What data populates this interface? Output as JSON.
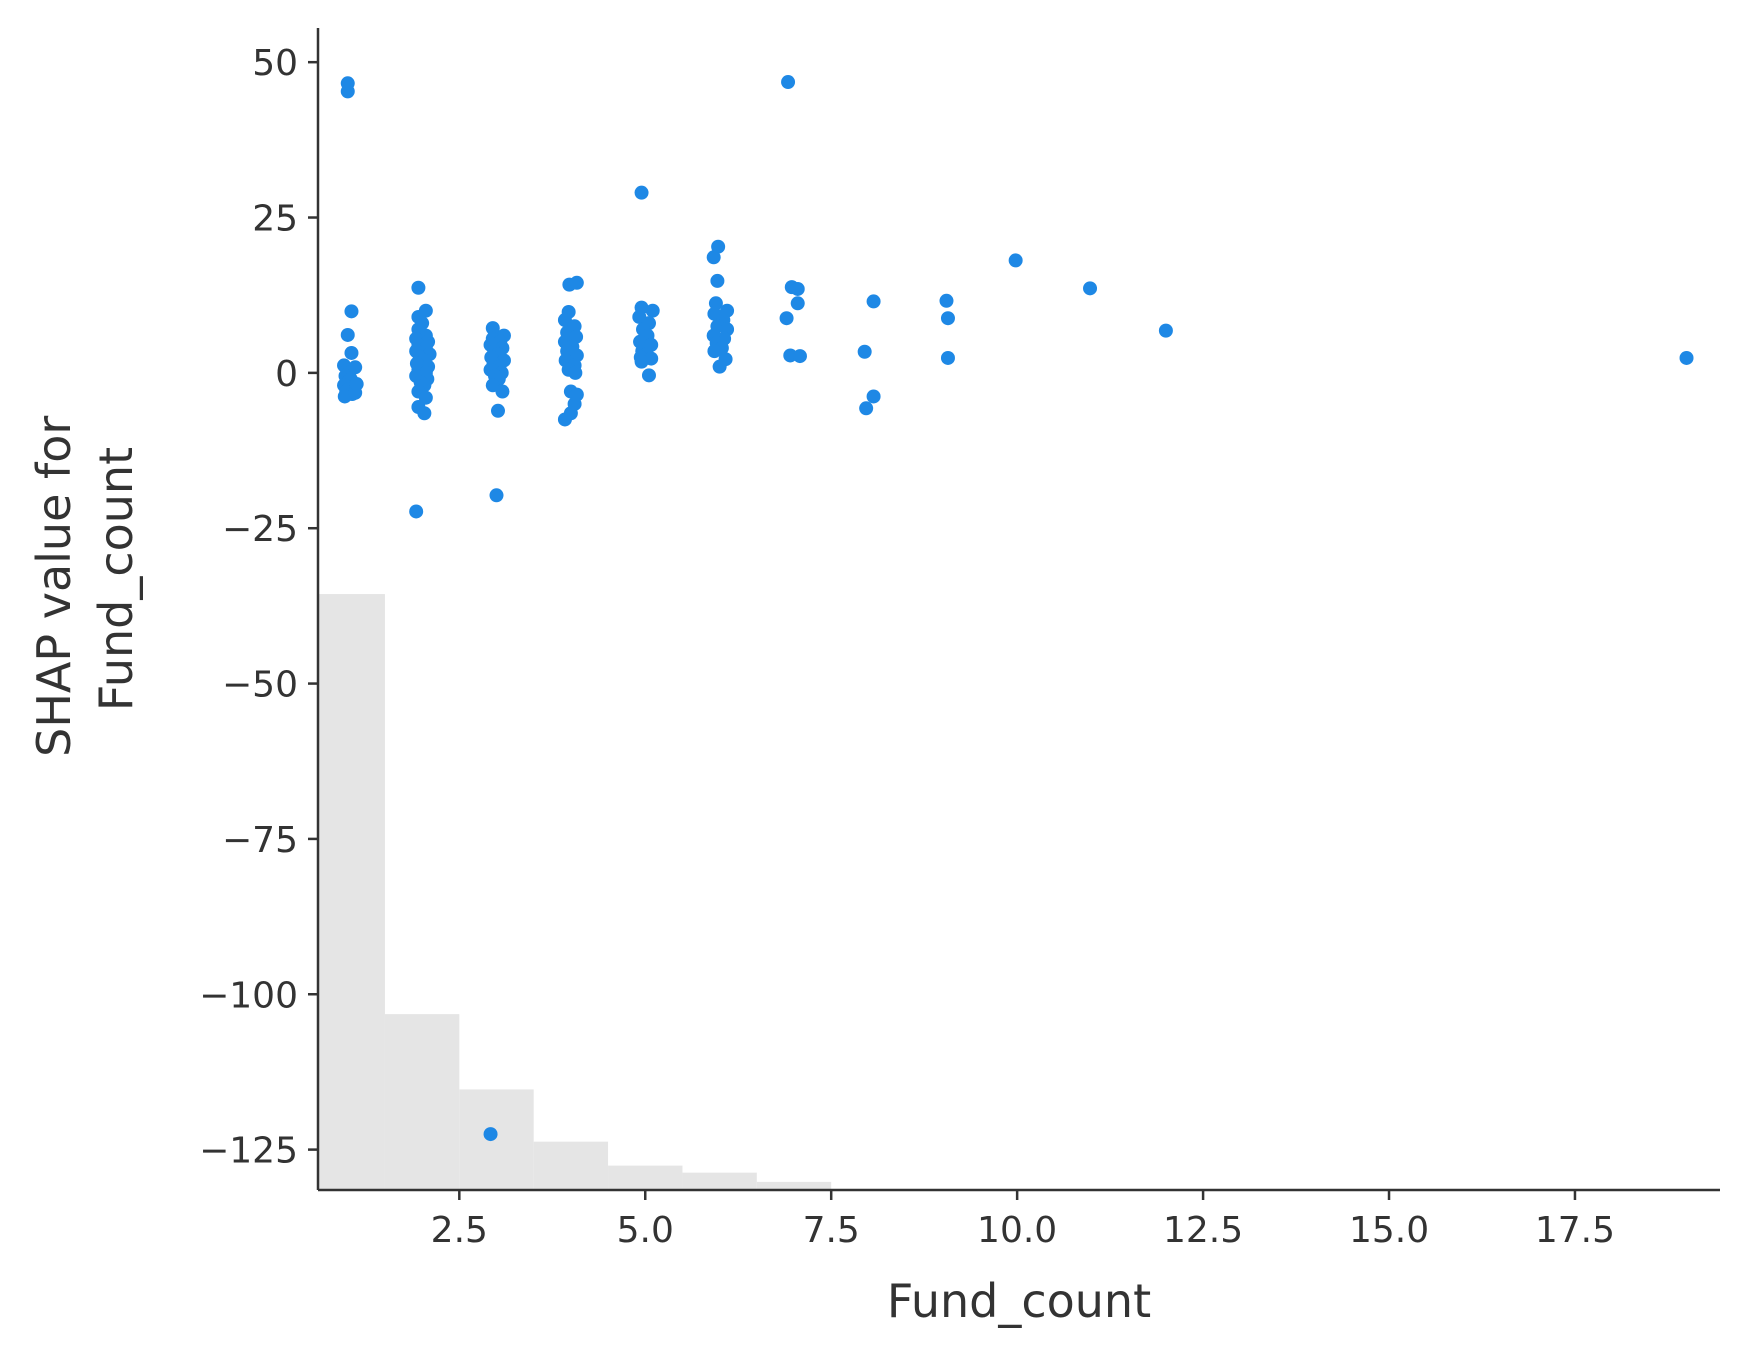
{
  "chart_data": {
    "type": "scatter",
    "title": "",
    "xlabel": "Fund_count",
    "ylabel_lines": [
      "SHAP value for",
      "Fund_count"
    ],
    "xlim": [
      0.6,
      19.45
    ],
    "ylim": [
      -131.5,
      55.5
    ],
    "xticks": [
      {
        "value": 2.5,
        "label": "2.5"
      },
      {
        "value": 5.0,
        "label": "5.0"
      },
      {
        "value": 7.5,
        "label": "7.5"
      },
      {
        "value": 10.0,
        "label": "10.0"
      },
      {
        "value": 12.5,
        "label": "12.5"
      },
      {
        "value": 15.0,
        "label": "15.0"
      },
      {
        "value": 17.5,
        "label": "17.5"
      }
    ],
    "yticks": [
      {
        "value": 50,
        "label": "50"
      },
      {
        "value": 25,
        "label": "25"
      },
      {
        "value": 0,
        "label": "0"
      },
      {
        "value": -25,
        "label": "−25"
      },
      {
        "value": -50,
        "label": "−50"
      },
      {
        "value": -75,
        "label": "−75"
      },
      {
        "value": -100,
        "label": "−100"
      },
      {
        "value": -125,
        "label": "−125"
      }
    ],
    "grid": false,
    "colors": {
      "points": "#1E88E5",
      "histogram": "#e5e5e5",
      "axis": "#333333"
    },
    "histogram": {
      "description": "background distribution of feature values (relative bar heights)",
      "bins": [
        {
          "x0": 0.5,
          "x1": 1.5,
          "height": 0.6696
        },
        {
          "x0": 1.5,
          "x1": 2.5,
          "height": 0.1976
        },
        {
          "x0": 2.5,
          "x1": 3.5,
          "height": 0.113
        },
        {
          "x0": 3.5,
          "x1": 4.5,
          "height": 0.0543
        },
        {
          "x0": 4.5,
          "x1": 5.5,
          "height": 0.0274
        },
        {
          "x0": 5.5,
          "x1": 6.5,
          "height": 0.0195
        },
        {
          "x0": 6.5,
          "x1": 7.5,
          "height": 0.0091
        }
      ]
    },
    "points": [
      {
        "x": 1.0,
        "y": 46.6
      },
      {
        "x": 1.0,
        "y": 45.3
      },
      {
        "x": 1.05,
        "y": 9.9
      },
      {
        "x": 1.0,
        "y": 6.1
      },
      {
        "x": 1.05,
        "y": 3.2
      },
      {
        "x": 0.95,
        "y": 1.2
      },
      {
        "x": 1.0,
        "y": 0.5
      },
      {
        "x": 1.02,
        "y": 0.0
      },
      {
        "x": 0.97,
        "y": -0.5
      },
      {
        "x": 1.04,
        "y": -1.0
      },
      {
        "x": 1.0,
        "y": -1.5
      },
      {
        "x": 0.95,
        "y": -2.0
      },
      {
        "x": 1.08,
        "y": -2.2
      },
      {
        "x": 1.02,
        "y": -2.6
      },
      {
        "x": 0.98,
        "y": -3.0
      },
      {
        "x": 1.06,
        "y": -3.4
      },
      {
        "x": 0.96,
        "y": -3.8
      },
      {
        "x": 1.1,
        "y": -3.2
      },
      {
        "x": 1.12,
        "y": -1.8
      },
      {
        "x": 1.1,
        "y": 0.9
      },
      {
        "x": 1.95,
        "y": 13.7
      },
      {
        "x": 2.05,
        "y": 10.0
      },
      {
        "x": 1.95,
        "y": 9.0
      },
      {
        "x": 2.0,
        "y": 8.0
      },
      {
        "x": 1.95,
        "y": 7.0
      },
      {
        "x": 2.05,
        "y": 6.0
      },
      {
        "x": 1.92,
        "y": 5.5
      },
      {
        "x": 2.08,
        "y": 5.0
      },
      {
        "x": 1.95,
        "y": 4.5
      },
      {
        "x": 2.05,
        "y": 4.0
      },
      {
        "x": 1.92,
        "y": 3.5
      },
      {
        "x": 2.1,
        "y": 3.0
      },
      {
        "x": 1.97,
        "y": 2.5
      },
      {
        "x": 2.02,
        "y": 2.0
      },
      {
        "x": 1.93,
        "y": 1.5
      },
      {
        "x": 2.08,
        "y": 1.0
      },
      {
        "x": 1.95,
        "y": 0.5
      },
      {
        "x": 2.05,
        "y": 0.0
      },
      {
        "x": 1.92,
        "y": -0.5
      },
      {
        "x": 2.07,
        "y": -1.0
      },
      {
        "x": 1.98,
        "y": -1.5
      },
      {
        "x": 2.03,
        "y": -2.0
      },
      {
        "x": 1.95,
        "y": -3.0
      },
      {
        "x": 2.05,
        "y": -4.0
      },
      {
        "x": 1.95,
        "y": -5.5
      },
      {
        "x": 2.03,
        "y": -6.5
      },
      {
        "x": 1.92,
        "y": -22.3
      },
      {
        "x": 2.95,
        "y": 7.2
      },
      {
        "x": 3.1,
        "y": 6.0
      },
      {
        "x": 2.95,
        "y": 5.5
      },
      {
        "x": 3.05,
        "y": 5.0
      },
      {
        "x": 2.92,
        "y": 4.5
      },
      {
        "x": 3.08,
        "y": 4.0
      },
      {
        "x": 2.97,
        "y": 3.5
      },
      {
        "x": 3.02,
        "y": 3.0
      },
      {
        "x": 2.93,
        "y": 2.5
      },
      {
        "x": 3.1,
        "y": 2.0
      },
      {
        "x": 2.96,
        "y": 1.5
      },
      {
        "x": 3.04,
        "y": 1.0
      },
      {
        "x": 2.92,
        "y": 0.5
      },
      {
        "x": 3.07,
        "y": 0.0
      },
      {
        "x": 2.98,
        "y": -0.5
      },
      {
        "x": 3.03,
        "y": -1.0
      },
      {
        "x": 2.95,
        "y": -2.0
      },
      {
        "x": 3.08,
        "y": -3.0
      },
      {
        "x": 3.02,
        "y": -6.1
      },
      {
        "x": 3.0,
        "y": -19.7
      },
      {
        "x": 2.92,
        "y": -122.5
      },
      {
        "x": 3.98,
        "y": 14.2
      },
      {
        "x": 4.08,
        "y": 14.5
      },
      {
        "x": 3.97,
        "y": 9.8
      },
      {
        "x": 3.92,
        "y": 8.5
      },
      {
        "x": 4.05,
        "y": 7.5
      },
      {
        "x": 3.95,
        "y": 6.5
      },
      {
        "x": 4.07,
        "y": 5.8
      },
      {
        "x": 3.92,
        "y": 5.0
      },
      {
        "x": 4.02,
        "y": 4.2
      },
      {
        "x": 3.95,
        "y": 3.5
      },
      {
        "x": 4.08,
        "y": 2.8
      },
      {
        "x": 3.93,
        "y": 2.0
      },
      {
        "x": 4.05,
        "y": 1.2
      },
      {
        "x": 3.97,
        "y": 0.5
      },
      {
        "x": 4.06,
        "y": 0.0
      },
      {
        "x": 4.0,
        "y": -3.0
      },
      {
        "x": 4.08,
        "y": -3.5
      },
      {
        "x": 4.05,
        "y": -5.0
      },
      {
        "x": 4.0,
        "y": -6.5
      },
      {
        "x": 3.92,
        "y": -7.5
      },
      {
        "x": 4.95,
        "y": 29.0
      },
      {
        "x": 4.95,
        "y": 10.5
      },
      {
        "x": 5.1,
        "y": 10.0
      },
      {
        "x": 4.92,
        "y": 9.0
      },
      {
        "x": 5.05,
        "y": 8.0
      },
      {
        "x": 4.97,
        "y": 7.0
      },
      {
        "x": 5.03,
        "y": 6.0
      },
      {
        "x": 4.93,
        "y": 5.0
      },
      {
        "x": 5.08,
        "y": 4.5
      },
      {
        "x": 4.96,
        "y": 3.5
      },
      {
        "x": 5.02,
        "y": 3.0
      },
      {
        "x": 4.94,
        "y": 2.5
      },
      {
        "x": 5.08,
        "y": 2.3
      },
      {
        "x": 4.95,
        "y": 1.8
      },
      {
        "x": 5.05,
        "y": -0.4
      },
      {
        "x": 5.98,
        "y": 20.3
      },
      {
        "x": 5.92,
        "y": 18.6
      },
      {
        "x": 5.97,
        "y": 14.8
      },
      {
        "x": 5.95,
        "y": 11.2
      },
      {
        "x": 6.1,
        "y": 10.0
      },
      {
        "x": 5.93,
        "y": 9.5
      },
      {
        "x": 6.05,
        "y": 8.5
      },
      {
        "x": 5.97,
        "y": 7.5
      },
      {
        "x": 6.1,
        "y": 7.0
      },
      {
        "x": 5.92,
        "y": 6.0
      },
      {
        "x": 6.06,
        "y": 5.5
      },
      {
        "x": 5.96,
        "y": 4.8
      },
      {
        "x": 6.03,
        "y": 4.0
      },
      {
        "x": 5.93,
        "y": 3.5
      },
      {
        "x": 6.08,
        "y": 2.2
      },
      {
        "x": 6.0,
        "y": 1.0
      },
      {
        "x": 6.92,
        "y": 46.8
      },
      {
        "x": 6.97,
        "y": 13.8
      },
      {
        "x": 7.05,
        "y": 13.5
      },
      {
        "x": 7.05,
        "y": 11.2
      },
      {
        "x": 6.9,
        "y": 8.8
      },
      {
        "x": 6.95,
        "y": 2.8
      },
      {
        "x": 7.08,
        "y": 2.7
      },
      {
        "x": 8.07,
        "y": 11.5
      },
      {
        "x": 7.95,
        "y": 3.4
      },
      {
        "x": 8.07,
        "y": -3.8
      },
      {
        "x": 7.97,
        "y": -5.7
      },
      {
        "x": 9.05,
        "y": 11.6
      },
      {
        "x": 9.07,
        "y": 8.8
      },
      {
        "x": 9.07,
        "y": 2.4
      },
      {
        "x": 9.98,
        "y": 18.1
      },
      {
        "x": 10.98,
        "y": 13.6
      },
      {
        "x": 12.0,
        "y": 6.8
      },
      {
        "x": 19.0,
        "y": 2.4
      }
    ]
  }
}
